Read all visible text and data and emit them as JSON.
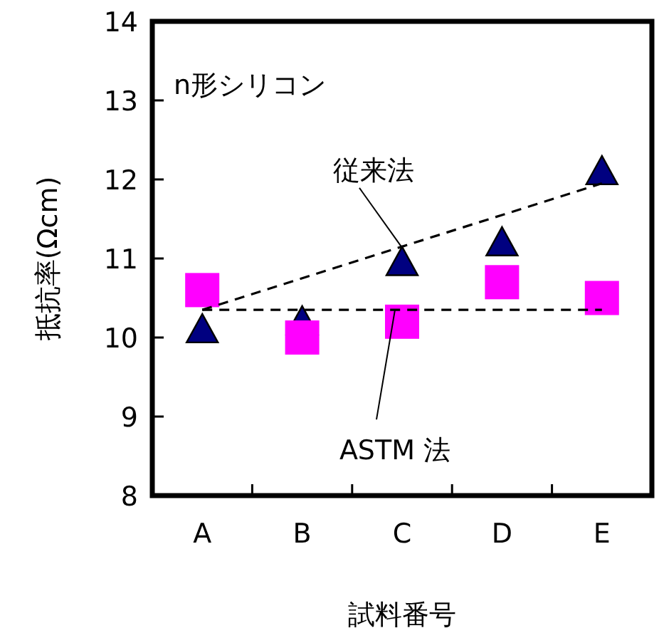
{
  "chart_data": {
    "type": "scatter",
    "xlabel": "試料番号",
    "ylabel": "抵抗率(Ωcm)",
    "categories": [
      "A",
      "B",
      "C",
      "D",
      "E"
    ],
    "ylim": [
      8,
      14
    ],
    "yticks": [
      8,
      9,
      10,
      11,
      12,
      13,
      14
    ],
    "grid": false,
    "series": [
      {
        "color": "#000080",
        "marker": "triangle",
        "values": [
          10.1,
          10.2,
          10.95,
          11.2,
          12.1
        ]
      },
      {
        "color": "#ff00ff",
        "marker": "square",
        "values": [
          10.6,
          10.0,
          10.2,
          10.7,
          10.5
        ]
      },
      {
        "type": "line",
        "color": "#000000",
        "line_style": "dashed",
        "marker": "none",
        "values": [
          10.35,
          10.75,
          11.15,
          11.55,
          11.95
        ]
      },
      {
        "type": "line",
        "color": "#000000",
        "line_style": "dashed",
        "marker": "none",
        "values": [
          10.35,
          10.35,
          10.35,
          10.35,
          10.35
        ]
      }
    ],
    "annotations": [
      "n形シリコン",
      {
        "text": "従来法",
        "x": "C",
        "y": 11.1
      },
      {
        "text": "ASTM 法",
        "x": "C",
        "y": 10.35
      }
    ]
  }
}
